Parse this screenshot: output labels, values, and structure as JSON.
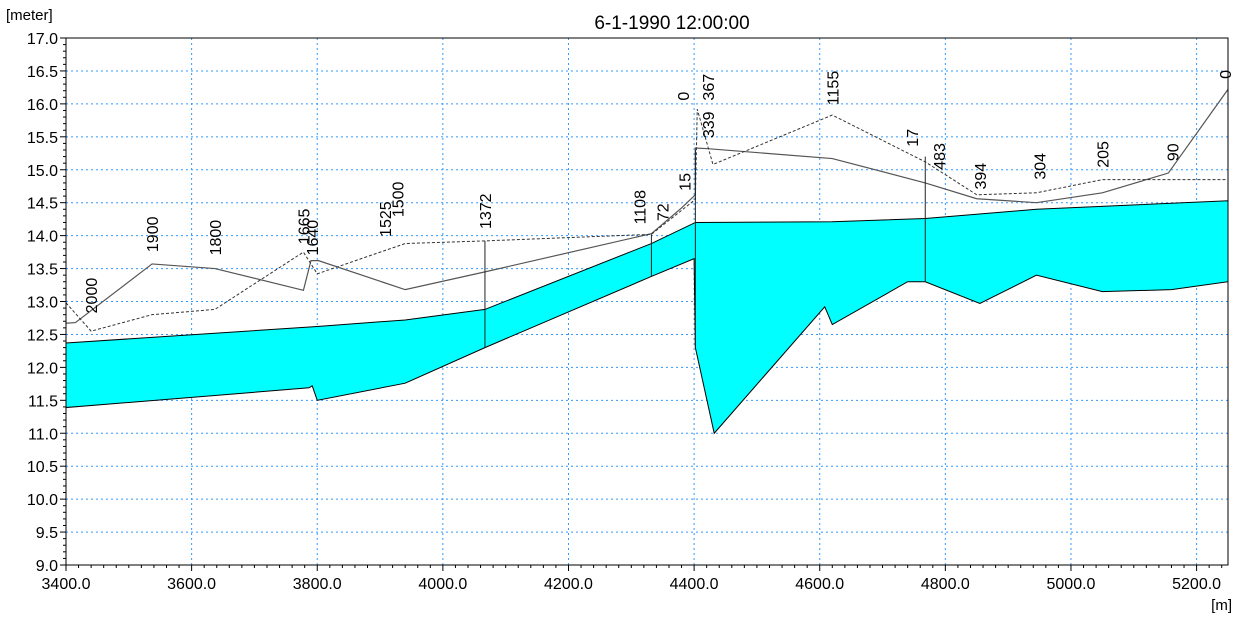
{
  "chart_data": {
    "type": "area",
    "title": "6-1-1990 12:00:00",
    "ylabel": "[meter]",
    "xlabel": "[m]",
    "xlim": [
      3400,
      5250
    ],
    "ylim": [
      9.0,
      17.0
    ],
    "grid": true,
    "x_ticks": [
      "3400.0",
      "3600.0",
      "3800.0",
      "4000.0",
      "4200.0",
      "4400.0",
      "4600.0",
      "4800.0",
      "5000.0",
      "5200.0"
    ],
    "y_ticks": [
      "9.0",
      "9.5",
      "10.0",
      "10.5",
      "11.0",
      "11.5",
      "12.0",
      "12.5",
      "13.0",
      "13.5",
      "14.0",
      "14.5",
      "15.0",
      "15.5",
      "16.0",
      "16.5",
      "17.0"
    ],
    "colors": {
      "water": "#00ffff",
      "grid": "#3399ff",
      "line": "#555555"
    },
    "water_surface": [
      [
        3400,
        12.37
      ],
      [
        3800,
        12.62
      ],
      [
        3940,
        12.72
      ],
      [
        4067,
        12.88
      ],
      [
        4332,
        13.88
      ],
      [
        4402,
        14.2
      ],
      [
        4620,
        14.21
      ],
      [
        4768,
        14.26
      ],
      [
        4945,
        14.4
      ],
      [
        5250,
        14.53
      ]
    ],
    "bed_level": [
      [
        3400,
        11.39
      ],
      [
        3787,
        11.69
      ],
      [
        3792,
        11.72
      ],
      [
        3800,
        11.5
      ],
      [
        3940,
        11.76
      ],
      [
        4067,
        12.3
      ],
      [
        4332,
        13.38
      ],
      [
        4400,
        13.65
      ],
      [
        4402,
        12.3
      ],
      [
        4432,
        11.0
      ],
      [
        4608,
        12.92
      ],
      [
        4620,
        12.65
      ],
      [
        4740,
        13.3
      ],
      [
        4768,
        13.3
      ],
      [
        4855,
        12.97
      ],
      [
        4945,
        13.4
      ],
      [
        5050,
        13.15
      ],
      [
        5160,
        13.18
      ],
      [
        5250,
        13.3
      ]
    ],
    "left_bank": [
      [
        3400,
        12.67
      ],
      [
        3415,
        12.68
      ],
      [
        3537,
        13.57
      ],
      [
        3637,
        13.5
      ],
      [
        3778,
        13.17
      ],
      [
        3790,
        13.62
      ],
      [
        3802,
        13.62
      ],
      [
        3940,
        13.18
      ],
      [
        4067,
        13.45
      ],
      [
        4332,
        14.03
      ],
      [
        4380,
        14.42
      ],
      [
        4402,
        14.62
      ],
      [
        4402,
        15.33
      ],
      [
        4422,
        15.32
      ],
      [
        4620,
        15.17
      ],
      [
        4768,
        14.8
      ],
      [
        4850,
        14.56
      ],
      [
        4945,
        14.5
      ],
      [
        5050,
        14.65
      ],
      [
        5155,
        14.95
      ],
      [
        5250,
        16.22
      ]
    ],
    "right_bank": [
      [
        3400,
        12.98
      ],
      [
        3440,
        12.55
      ],
      [
        3537,
        12.8
      ],
      [
        3637,
        12.88
      ],
      [
        3778,
        13.75
      ],
      [
        3800,
        13.42
      ],
      [
        3940,
        13.88
      ],
      [
        4067,
        13.92
      ],
      [
        4332,
        14.02
      ],
      [
        4402,
        14.55
      ],
      [
        4405,
        15.92
      ],
      [
        4430,
        15.08
      ],
      [
        4620,
        15.83
      ],
      [
        4768,
        15.12
      ],
      [
        4850,
        14.62
      ],
      [
        4945,
        14.65
      ],
      [
        5050,
        14.85
      ],
      [
        5160,
        14.85
      ],
      [
        5250,
        14.85
      ]
    ],
    "structures": [
      [
        4067,
        12.3,
        13.92
      ],
      [
        4332,
        13.38,
        14.02
      ],
      [
        4768,
        13.3,
        15.2
      ],
      [
        4402,
        12.3,
        15.3
      ],
      [
        5250,
        13.3,
        16.22
      ]
    ],
    "chainage_labels": [
      {
        "text": "2000",
        "x": 3440,
        "y": 12.82
      },
      {
        "text": "1900",
        "x": 3537,
        "y": 13.75
      },
      {
        "text": "1800",
        "x": 3637,
        "y": 13.7
      },
      {
        "text": "1665",
        "x": 3778,
        "y": 13.87
      },
      {
        "text": "1640",
        "x": 3792,
        "y": 13.7
      },
      {
        "text": "1525",
        "x": 3908,
        "y": 13.98
      },
      {
        "text": "1500",
        "x": 3928,
        "y": 14.28
      },
      {
        "text": "1372",
        "x": 4067,
        "y": 14.1
      },
      {
        "text": "1108",
        "x": 4313,
        "y": 14.17
      },
      {
        "text": "72",
        "x": 4350,
        "y": 14.22
      },
      {
        "text": "15",
        "x": 4385,
        "y": 14.68
      },
      {
        "text": "0",
        "x": 4382,
        "y": 16.05
      },
      {
        "text": "367",
        "x": 4422,
        "y": 16.05
      },
      {
        "text": "339",
        "x": 4422,
        "y": 15.48
      },
      {
        "text": "1155",
        "x": 4620,
        "y": 15.98
      },
      {
        "text": "17",
        "x": 4747,
        "y": 15.35
      },
      {
        "text": "483",
        "x": 4790,
        "y": 15.0
      },
      {
        "text": "394",
        "x": 4855,
        "y": 14.7
      },
      {
        "text": "304",
        "x": 4950,
        "y": 14.85
      },
      {
        "text": "205",
        "x": 5050,
        "y": 15.03
      },
      {
        "text": "90",
        "x": 5162,
        "y": 15.13
      },
      {
        "text": "0",
        "x": 5245,
        "y": 16.38
      }
    ]
  }
}
